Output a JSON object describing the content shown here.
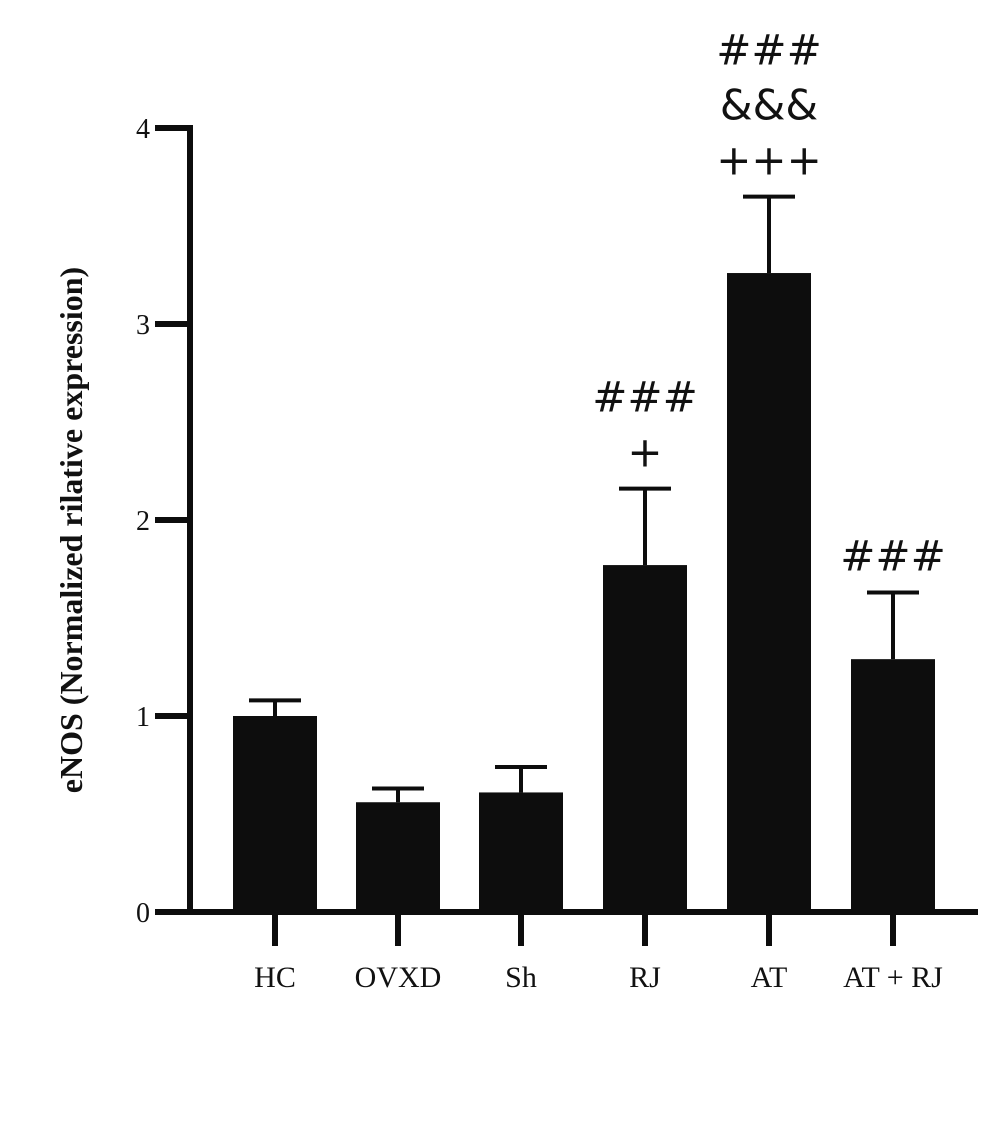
{
  "chart_data": {
    "type": "bar",
    "title": "",
    "xlabel": "",
    "ylabel": "eNOS (Normalized rilative expression)",
    "ylim": [
      0,
      4
    ],
    "yticks": [
      0,
      1,
      2,
      3,
      4
    ],
    "categories": [
      "HC",
      "OVXD",
      "Sh",
      "RJ",
      "AT",
      "AT + RJ"
    ],
    "values": [
      1.0,
      0.56,
      0.61,
      1.77,
      3.26,
      1.29
    ],
    "errors": [
      0.08,
      0.07,
      0.13,
      0.39,
      0.39,
      0.34
    ],
    "annotations": [
      [],
      [],
      [],
      [
        "###",
        "+"
      ],
      [
        "###",
        "&&&",
        "+++"
      ],
      [
        "###"
      ]
    ],
    "bar_color": "#0d0d0d",
    "grid": false,
    "legend": "none"
  }
}
